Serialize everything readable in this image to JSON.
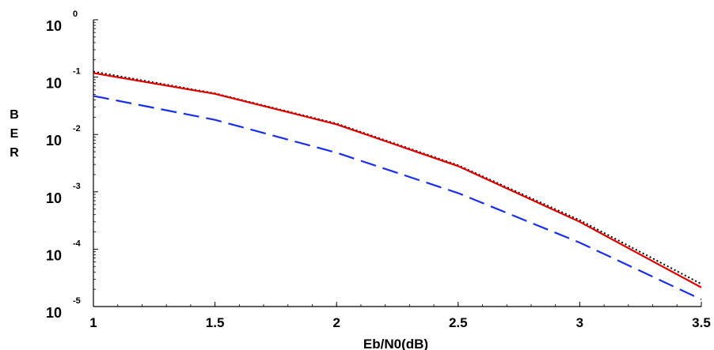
{
  "chart_data": {
    "type": "line",
    "title": "",
    "xlabel": "Eb/N0(dB)",
    "ylabel_letters": [
      "B",
      "E",
      "R"
    ],
    "xlim": [
      1,
      3.5
    ],
    "ylim": [
      1e-05,
      1
    ],
    "yscale": "log",
    "x_ticks": [
      "1",
      "1.5",
      "2",
      "2.5",
      "3",
      "3.5"
    ],
    "y_ticks": [
      {
        "base": "10",
        "exp": "0"
      },
      {
        "base": "10",
        "exp": "-1"
      },
      {
        "base": "10",
        "exp": "-2"
      },
      {
        "base": "10",
        "exp": "-3"
      },
      {
        "base": "10",
        "exp": "-4"
      },
      {
        "base": "10",
        "exp": "-5"
      }
    ],
    "grid": false,
    "legend": "none",
    "x": [
      1,
      1.5,
      2,
      2.5,
      3,
      3.5
    ],
    "series": [
      {
        "values": [
          0.125,
          0.052,
          0.0155,
          0.0029,
          0.00032,
          2.48e-05
        ],
        "color": "#000000",
        "style": "dotted"
      },
      {
        "values": [
          0.118,
          0.051,
          0.015,
          0.0028,
          0.0003,
          2.15e-05
        ],
        "color": "#e00000",
        "style": "solid"
      },
      {
        "values": [
          0.047,
          0.018,
          0.0048,
          0.00095,
          0.00013,
          1.33e-05
        ],
        "color": "#1a2fe6",
        "style": "dashed"
      }
    ]
  }
}
